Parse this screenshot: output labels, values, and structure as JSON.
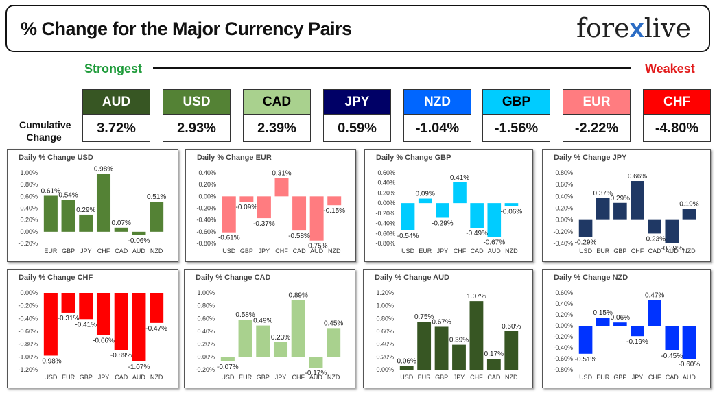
{
  "header": {
    "title": "% Change for the Major Currency Pairs",
    "logo_left": "fore",
    "logo_x": "x",
    "logo_right": "live"
  },
  "scale": {
    "strongest_label": "Strongest",
    "weakest_label": "Weakest",
    "cumulative_label_line1": "Cumulative",
    "cumulative_label_line2": "Change"
  },
  "currencies": [
    {
      "code": "AUD",
      "change": "3.72%",
      "bg": "#375623",
      "fg": "#ffffff"
    },
    {
      "code": "USD",
      "change": "2.93%",
      "bg": "#548235",
      "fg": "#ffffff"
    },
    {
      "code": "CAD",
      "change": "2.39%",
      "bg": "#a9d18e",
      "fg": "#000000"
    },
    {
      "code": "JPY",
      "change": "0.59%",
      "bg": "#000066",
      "fg": "#ffffff"
    },
    {
      "code": "NZD",
      "change": "-1.04%",
      "bg": "#0066ff",
      "fg": "#ffffff"
    },
    {
      "code": "GBP",
      "change": "-1.56%",
      "bg": "#00ccff",
      "fg": "#000000"
    },
    {
      "code": "EUR",
      "change": "-2.22%",
      "bg": "#ff7c80",
      "fg": "#ffffff"
    },
    {
      "code": "CHF",
      "change": "-4.80%",
      "bg": "#ff0000",
      "fg": "#ffffff"
    }
  ],
  "chart_data": [
    {
      "type": "bar",
      "title": "Daily % Change USD",
      "color": "#548235",
      "categories": [
        "EUR",
        "GBP",
        "JPY",
        "CHF",
        "CAD",
        "AUD",
        "NZD"
      ],
      "values": [
        0.61,
        0.54,
        0.29,
        0.98,
        0.07,
        -0.06,
        0.51
      ],
      "labels": [
        "0.61%",
        "0.54%",
        "0.29%",
        "0.98%",
        "0.07%",
        "-0.06%",
        "0.51%"
      ],
      "ylim": [
        -0.2,
        1.0
      ],
      "ticks": [
        "-0.20%",
        "0.00%",
        "0.20%",
        "0.40%",
        "0.60%",
        "0.80%",
        "1.00%"
      ],
      "tick_values": [
        -0.2,
        0,
        0.2,
        0.4,
        0.6,
        0.8,
        1.0
      ]
    },
    {
      "type": "bar",
      "title": "Daily % Change EUR",
      "color": "#ff7c80",
      "categories": [
        "USD",
        "GBP",
        "JPY",
        "CHF",
        "CAD",
        "AUD",
        "NZD"
      ],
      "values": [
        -0.61,
        -0.09,
        -0.37,
        0.31,
        -0.58,
        -0.75,
        -0.15
      ],
      "labels": [
        "-0.61%",
        "-0.09%",
        "-0.37%",
        "0.31%",
        "-0.58%",
        "-0.75%",
        "-0.15%"
      ],
      "ylim": [
        -0.8,
        0.4
      ],
      "ticks": [
        "-0.80%",
        "-0.60%",
        "-0.40%",
        "-0.20%",
        "0.00%",
        "0.20%",
        "0.40%"
      ],
      "tick_values": [
        -0.8,
        -0.6,
        -0.4,
        -0.2,
        0,
        0.2,
        0.4
      ]
    },
    {
      "type": "bar",
      "title": "Daily % Change GBP",
      "color": "#00ccff",
      "categories": [
        "USD",
        "EUR",
        "JPY",
        "CHF",
        "CAD",
        "AUD",
        "NZD"
      ],
      "values": [
        -0.54,
        0.09,
        -0.29,
        0.41,
        -0.49,
        -0.67,
        -0.06
      ],
      "labels": [
        "-0.54%",
        "0.09%",
        "-0.29%",
        "0.41%",
        "-0.49%",
        "-0.67%",
        "-0.06%"
      ],
      "ylim": [
        -0.8,
        0.6
      ],
      "ticks": [
        "-0.80%",
        "-0.60%",
        "-0.40%",
        "-0.20%",
        "0.00%",
        "0.20%",
        "0.40%",
        "0.60%"
      ],
      "tick_values": [
        -0.8,
        -0.6,
        -0.4,
        -0.2,
        0,
        0.2,
        0.4,
        0.6
      ]
    },
    {
      "type": "bar",
      "title": "Daily % Change JPY",
      "color": "#1f3864",
      "categories": [
        "USD",
        "EUR",
        "GBP",
        "CHF",
        "CAD",
        "AUD",
        "NZD"
      ],
      "values": [
        -0.29,
        0.37,
        0.29,
        0.66,
        -0.23,
        -0.39,
        0.19
      ],
      "labels": [
        "-0.29%",
        "0.37%",
        "0.29%",
        "0.66%",
        "-0.23%",
        "-0.39%",
        "0.19%"
      ],
      "ylim": [
        -0.4,
        0.8
      ],
      "ticks": [
        "-0.40%",
        "-0.20%",
        "0.00%",
        "0.20%",
        "0.40%",
        "0.60%",
        "0.80%"
      ],
      "tick_values": [
        -0.4,
        -0.2,
        0,
        0.2,
        0.4,
        0.6,
        0.8
      ]
    },
    {
      "type": "bar",
      "title": "Daily % Change CHF",
      "color": "#ff0000",
      "categories": [
        "USD",
        "EUR",
        "GBP",
        "JPY",
        "CAD",
        "AUD",
        "NZD"
      ],
      "values": [
        -0.98,
        -0.31,
        -0.41,
        -0.66,
        -0.89,
        -1.07,
        -0.47
      ],
      "labels": [
        "-0.98%",
        "-0.31%",
        "-0.41%",
        "-0.66%",
        "-0.89%",
        "-1.07%",
        "-0.47%"
      ],
      "ylim": [
        -1.2,
        0.0
      ],
      "ticks": [
        "-1.20%",
        "-1.00%",
        "-0.80%",
        "-0.60%",
        "-0.40%",
        "-0.20%",
        "0.00%"
      ],
      "tick_values": [
        -1.2,
        -1.0,
        -0.8,
        -0.6,
        -0.4,
        -0.2,
        0
      ]
    },
    {
      "type": "bar",
      "title": "Daily % Change CAD",
      "color": "#a9d18e",
      "categories": [
        "USD",
        "EUR",
        "GBP",
        "JPY",
        "CHF",
        "AUD",
        "NZD"
      ],
      "values": [
        -0.07,
        0.58,
        0.49,
        0.23,
        0.89,
        -0.17,
        0.45
      ],
      "labels": [
        "-0.07%",
        "0.58%",
        "0.49%",
        "0.23%",
        "0.89%",
        "-0.17%",
        "0.45%"
      ],
      "ylim": [
        -0.2,
        1.0
      ],
      "ticks": [
        "-0.20%",
        "0.00%",
        "0.20%",
        "0.40%",
        "0.60%",
        "0.80%",
        "1.00%"
      ],
      "tick_values": [
        -0.2,
        0,
        0.2,
        0.4,
        0.6,
        0.8,
        1.0
      ]
    },
    {
      "type": "bar",
      "title": "Daily % Change AUD",
      "color": "#375623",
      "categories": [
        "USD",
        "EUR",
        "GBP",
        "JPY",
        "CHF",
        "CAD",
        "NZD"
      ],
      "values": [
        0.06,
        0.75,
        0.67,
        0.39,
        1.07,
        0.17,
        0.6
      ],
      "labels": [
        "0.06%",
        "0.75%",
        "0.67%",
        "0.39%",
        "1.07%",
        "0.17%",
        "0.60%"
      ],
      "ylim": [
        0.0,
        1.2
      ],
      "ticks": [
        "0.00%",
        "0.20%",
        "0.40%",
        "0.60%",
        "0.80%",
        "1.00%",
        "1.20%"
      ],
      "tick_values": [
        0,
        0.2,
        0.4,
        0.6,
        0.8,
        1.0,
        1.2
      ]
    },
    {
      "type": "bar",
      "title": "Daily % Change NZD",
      "color": "#0033ff",
      "categories": [
        "USD",
        "EUR",
        "GBP",
        "JPY",
        "CHF",
        "CAD",
        "AUD"
      ],
      "values": [
        -0.51,
        0.15,
        0.06,
        -0.19,
        0.47,
        -0.45,
        -0.6
      ],
      "labels": [
        "-0.51%",
        "0.15%",
        "0.06%",
        "-0.19%",
        "0.47%",
        "-0.45%",
        "-0.60%"
      ],
      "ylim": [
        -0.8,
        0.6
      ],
      "ticks": [
        "-0.80%",
        "-0.60%",
        "-0.40%",
        "-0.20%",
        "0.00%",
        "0.20%",
        "0.40%",
        "0.60%"
      ],
      "tick_values": [
        -0.8,
        -0.6,
        -0.4,
        -0.2,
        0,
        0.2,
        0.4,
        0.6
      ]
    }
  ]
}
